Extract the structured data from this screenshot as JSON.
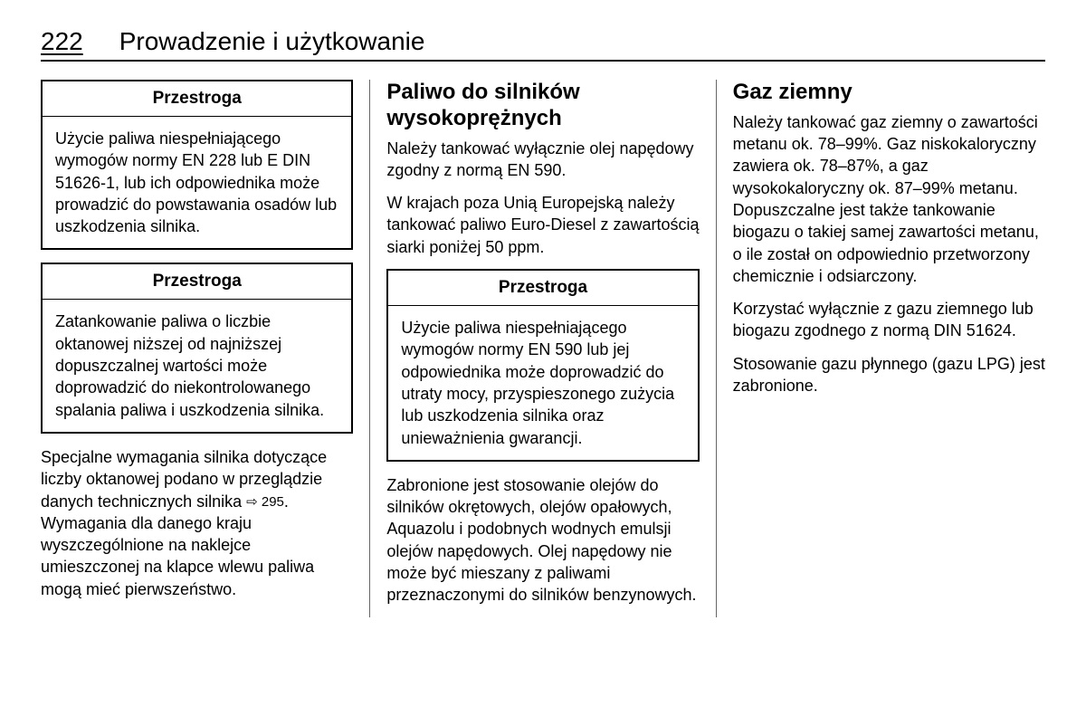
{
  "page_number": "222",
  "header_title": "Prowadzenie i użytkowanie",
  "col1": {
    "caution1_title": "Przestroga",
    "caution1_body": "Użycie paliwa niespełniającego wymogów normy EN 228 lub E DIN 51626-1, lub ich odpowiednika może prowadzić do powstawania osadów lub uszkodzenia silnika.",
    "caution2_title": "Przestroga",
    "caution2_body": "Zatankowanie paliwa o liczbie oktanowej niższej od najniższej dopuszczalnej wartości może doprowadzić do niekontrolowanego spalania paliwa i uszkodzenia silnika.",
    "para1_a": "Specjalne wymagania silnika dotyczące liczby oktanowej podano w przeglądzie danych technicznych silnika ",
    "para1_ref": "⇨ 295",
    "para1_b": ". Wymagania dla danego kraju wyszczególnione na naklejce umieszczonej na klapce wlewu paliwa mogą mieć pierwszeństwo."
  },
  "col2": {
    "title": "Paliwo do silników wysokoprężnych",
    "para1": "Należy tankować wyłącznie olej napędowy zgodny z normą EN 590.",
    "para2": "W krajach poza Unią Europejską należy tankować paliwo Euro-Diesel z zawartością siarki poniżej 50 ppm.",
    "caution_title": "Przestroga",
    "caution_body": "Użycie paliwa niespełniającego wymogów normy EN 590 lub jej odpowiednika może doprowadzić do utraty mocy, przyspieszonego zużycia lub uszkodzenia silnika oraz unieważnienia gwarancji.",
    "para3": "Zabronione jest stosowanie olejów do silników okrętowych, olejów opałowych, Aquazolu i podobnych wodnych emulsji olejów napędowych. Olej napędowy nie może być mieszany z paliwami przeznaczonymi do silników benzynowych."
  },
  "col3": {
    "title": "Gaz ziemny",
    "para1": "Należy tankować gaz ziemny o zawartości metanu ok. 78–99%. Gaz niskokaloryczny zawiera ok. 78–87%, a gaz wysokokaloryczny ok. 87–99% metanu. Dopuszczalne jest także tankowanie biogazu o takiej samej zawartości metanu, o ile został on odpowiednio przetworzony chemicznie i odsiarczony.",
    "para2": "Korzystać wyłącznie z gazu ziemnego lub biogazu zgodnego z normą DIN 51624.",
    "para3": "Stosowanie gazu płynnego (gazu LPG) jest zabronione."
  }
}
